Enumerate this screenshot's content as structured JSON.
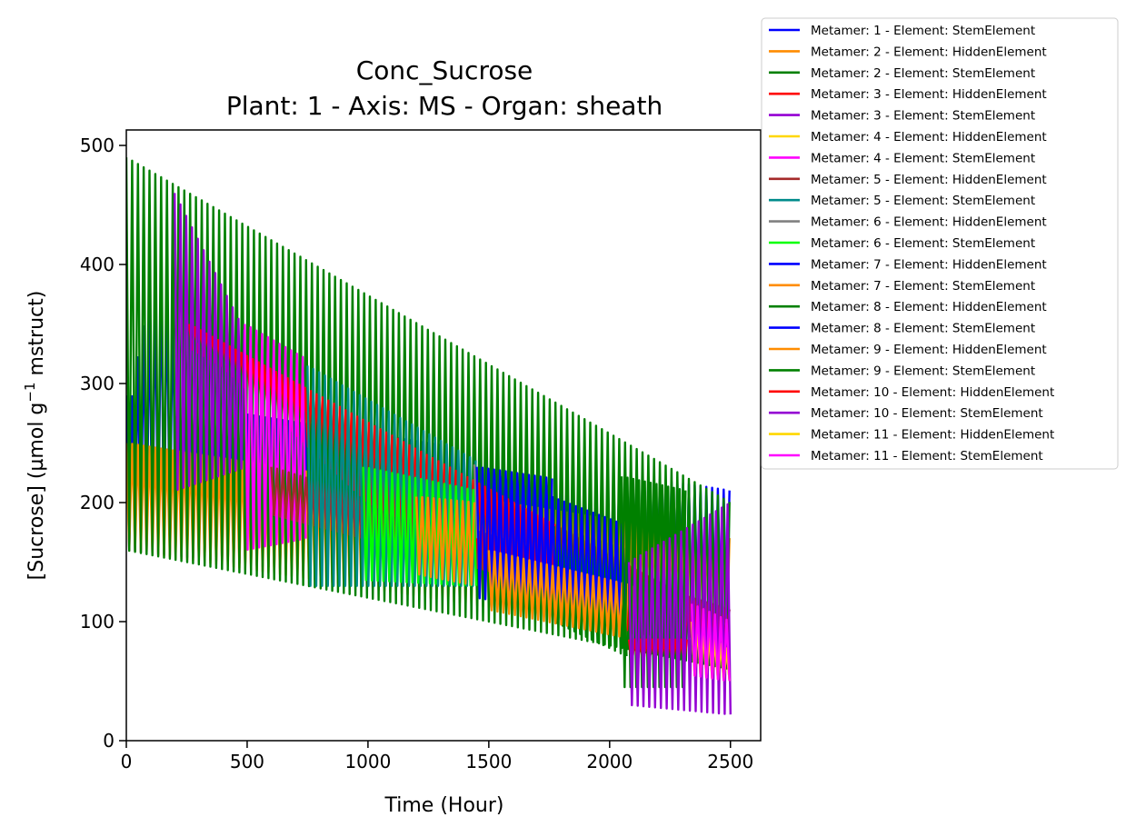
{
  "chart_data": {
    "type": "line",
    "title": "Conc_Sucrose",
    "subtitle": "Plant: 1 - Axis: MS - Organ: sheath",
    "xlabel": "Time (Hour)",
    "ylabel_main": "[Sucrose] (µmol g",
    "ylabel_sup": "−1",
    "ylabel_tail": " mstruct)",
    "xlim": [
      0,
      2625
    ],
    "ylim": [
      0,
      513
    ],
    "xticks": [
      0,
      500,
      1000,
      1500,
      2000,
      2500
    ],
    "yticks": [
      0,
      100,
      200,
      300,
      400,
      500
    ],
    "grid": false,
    "legend_position": "outside-top-right",
    "series": [
      {
        "name": "Metamer: 1 - Element: StemElement",
        "color": "#0000ff",
        "x": [
          0,
          2500
        ],
        "low": [
          160,
          100
        ],
        "high": [
          290,
          210
        ],
        "path": [
          [
            0,
            250
          ],
          [
            60,
            340
          ],
          [
            150,
            400
          ],
          [
            260,
            340
          ],
          [
            400,
            270
          ],
          [
            600,
            240
          ],
          [
            1000,
            200
          ],
          [
            1500,
            180
          ],
          [
            2000,
            150
          ],
          [
            2500,
            130
          ]
        ]
      },
      {
        "name": "Metamer: 2 - Element: HiddenElement",
        "color": "#ff8c00",
        "x": [
          0,
          2500
        ],
        "low": [
          160,
          80
        ],
        "high": [
          250,
          170
        ],
        "path": [
          [
            0,
            200
          ],
          [
            1000,
            160
          ],
          [
            2000,
            110
          ],
          [
            2500,
            100
          ]
        ]
      },
      {
        "name": "Metamer: 2 - Element: StemElement",
        "color": "#008000",
        "x": [
          0,
          2500
        ],
        "low": [
          160,
          60
        ],
        "high": [
          490,
          200
        ],
        "path": [
          [
            0,
            480
          ],
          [
            100,
            360
          ],
          [
            200,
            400
          ],
          [
            600,
            260
          ],
          [
            1500,
            180
          ],
          [
            2500,
            130
          ]
        ]
      },
      {
        "name": "Metamer: 3 - Element: HiddenElement",
        "color": "#ff0000",
        "x": [
          260,
          2500
        ],
        "low": [
          330,
          80
        ],
        "high": [
          350,
          100
        ],
        "path": [
          [
            260,
            340
          ],
          [
            1000,
            200
          ],
          [
            2100,
            90
          ],
          [
            2500,
            85
          ]
        ]
      },
      {
        "name": "Metamer: 3 - Element: StemElement",
        "color": "#9400d3",
        "x": [
          200,
          500
        ],
        "low": [
          210,
          230
        ],
        "high": [
          460,
          340
        ],
        "path": [
          [
            200,
            420
          ],
          [
            300,
            330
          ],
          [
            400,
            290
          ],
          [
            500,
            270
          ]
        ]
      },
      {
        "name": "Metamer: 4 - Element: HiddenElement",
        "color": "#ffd700",
        "x": [
          2340,
          2500
        ],
        "low": [
          55,
          50
        ],
        "high": [
          100,
          75
        ],
        "path": [
          [
            2340,
            90
          ],
          [
            2500,
            60
          ]
        ]
      },
      {
        "name": "Metamer: 4 - Element: StemElement",
        "color": "#ff00ff",
        "x": [
          490,
          750
        ],
        "low": [
          160,
          170
        ],
        "high": [
          350,
          320
        ],
        "path": [
          [
            490,
            300
          ],
          [
            600,
            240
          ],
          [
            750,
            240
          ]
        ]
      },
      {
        "name": "Metamer: 5 - Element: HiddenElement",
        "color": "#a52a2a",
        "x": [
          600,
          2500
        ],
        "low": [
          190,
          90
        ],
        "high": [
          230,
          110
        ],
        "path": [
          [
            600,
            210
          ],
          [
            2500,
            100
          ]
        ]
      },
      {
        "name": "Metamer: 5 - Element: StemElement",
        "color": "#008b8b",
        "x": [
          750,
          1450
        ],
        "low": [
          130,
          130
        ],
        "high": [
          315,
          235
        ],
        "path": [
          [
            750,
            250
          ],
          [
            1000,
            190
          ],
          [
            1450,
            180
          ]
        ]
      },
      {
        "name": "Metamer: 6 - Element: HiddenElement",
        "color": "#808080",
        "x": [
          1440,
          1460
        ],
        "low": [
          170,
          170
        ],
        "high": [
          232,
          232
        ],
        "path": [
          [
            1440,
            200
          ],
          [
            1460,
            200
          ]
        ]
      },
      {
        "name": "Metamer: 6 - Element: StemElement",
        "color": "#00ff00",
        "x": [
          980,
          1450
        ],
        "low": [
          135,
          130
        ],
        "high": [
          230,
          210
        ],
        "path": [
          [
            980,
            190
          ],
          [
            1200,
            170
          ],
          [
            1450,
            170
          ]
        ]
      },
      {
        "name": "Metamer: 7 - Element: HiddenElement",
        "color": "#0000ff",
        "x": [
          1450,
          1770
        ],
        "low": [
          120,
          110
        ],
        "high": [
          230,
          220
        ],
        "path": [
          [
            1450,
            175
          ],
          [
            1770,
            160
          ]
        ]
      },
      {
        "name": "Metamer: 7 - Element: StemElement",
        "color": "#ff8c00",
        "x": [
          1200,
          1450
        ],
        "low": [
          140,
          130
        ],
        "high": [
          205,
          200
        ],
        "path": [
          [
            1200,
            170
          ],
          [
            1450,
            165
          ]
        ]
      },
      {
        "name": "Metamer: 8 - Element: HiddenElement",
        "color": "#008000",
        "x": [
          1770,
          2080
        ],
        "low": [
          100,
          70
        ],
        "high": [
          180,
          160
        ],
        "path": [
          [
            1770,
            140
          ],
          [
            2080,
            120
          ]
        ]
      },
      {
        "name": "Metamer: 8 - Element: StemElement",
        "color": "#0000ff",
        "x": [
          1500,
          2080
        ],
        "low": [
          120,
          100
        ],
        "high": [
          225,
          180
        ],
        "path": [
          [
            1500,
            170
          ],
          [
            2080,
            140
          ]
        ]
      },
      {
        "name": "Metamer: 9 - Element: HiddenElement",
        "color": "#ff8c00",
        "x": [
          1500,
          2100
        ],
        "low": [
          110,
          85
        ],
        "high": [
          160,
          130
        ],
        "path": [
          [
            1500,
            130
          ],
          [
            2100,
            100
          ]
        ]
      },
      {
        "name": "Metamer: 9 - Element: StemElement",
        "color": "#008000",
        "x": [
          2050,
          2320
        ],
        "low": [
          45,
          45
        ],
        "high": [
          222,
          210
        ],
        "path": [
          [
            2050,
            130
          ],
          [
            2320,
            120
          ]
        ]
      },
      {
        "name": "Metamer: 10 - Element: HiddenElement",
        "color": "#ff0000",
        "x": [
          2080,
          2330
        ],
        "low": [
          65,
          65
        ],
        "high": [
          85,
          85
        ],
        "path": [
          [
            2080,
            75
          ],
          [
            2330,
            75
          ]
        ]
      },
      {
        "name": "Metamer: 10 - Element: StemElement",
        "color": "#9400d3",
        "x": [
          2080,
          2500
        ],
        "low": [
          30,
          22
        ],
        "high": [
          150,
          200
        ],
        "path": [
          [
            2080,
            110
          ],
          [
            2500,
            100
          ]
        ]
      },
      {
        "name": "Metamer: 11 - Element: HiddenElement",
        "color": "#ffd700",
        "x": [
          2340,
          2500
        ],
        "low": [
          55,
          50
        ],
        "high": [
          100,
          75
        ],
        "path": [
          [
            2340,
            80
          ],
          [
            2500,
            60
          ]
        ]
      },
      {
        "name": "Metamer: 11 - Element: StemElement",
        "color": "#ff00ff",
        "x": [
          2340,
          2500
        ],
        "low": [
          55,
          50
        ],
        "high": [
          115,
          100
        ],
        "path": [
          [
            2340,
            90
          ],
          [
            2500,
            80
          ]
        ]
      }
    ]
  }
}
